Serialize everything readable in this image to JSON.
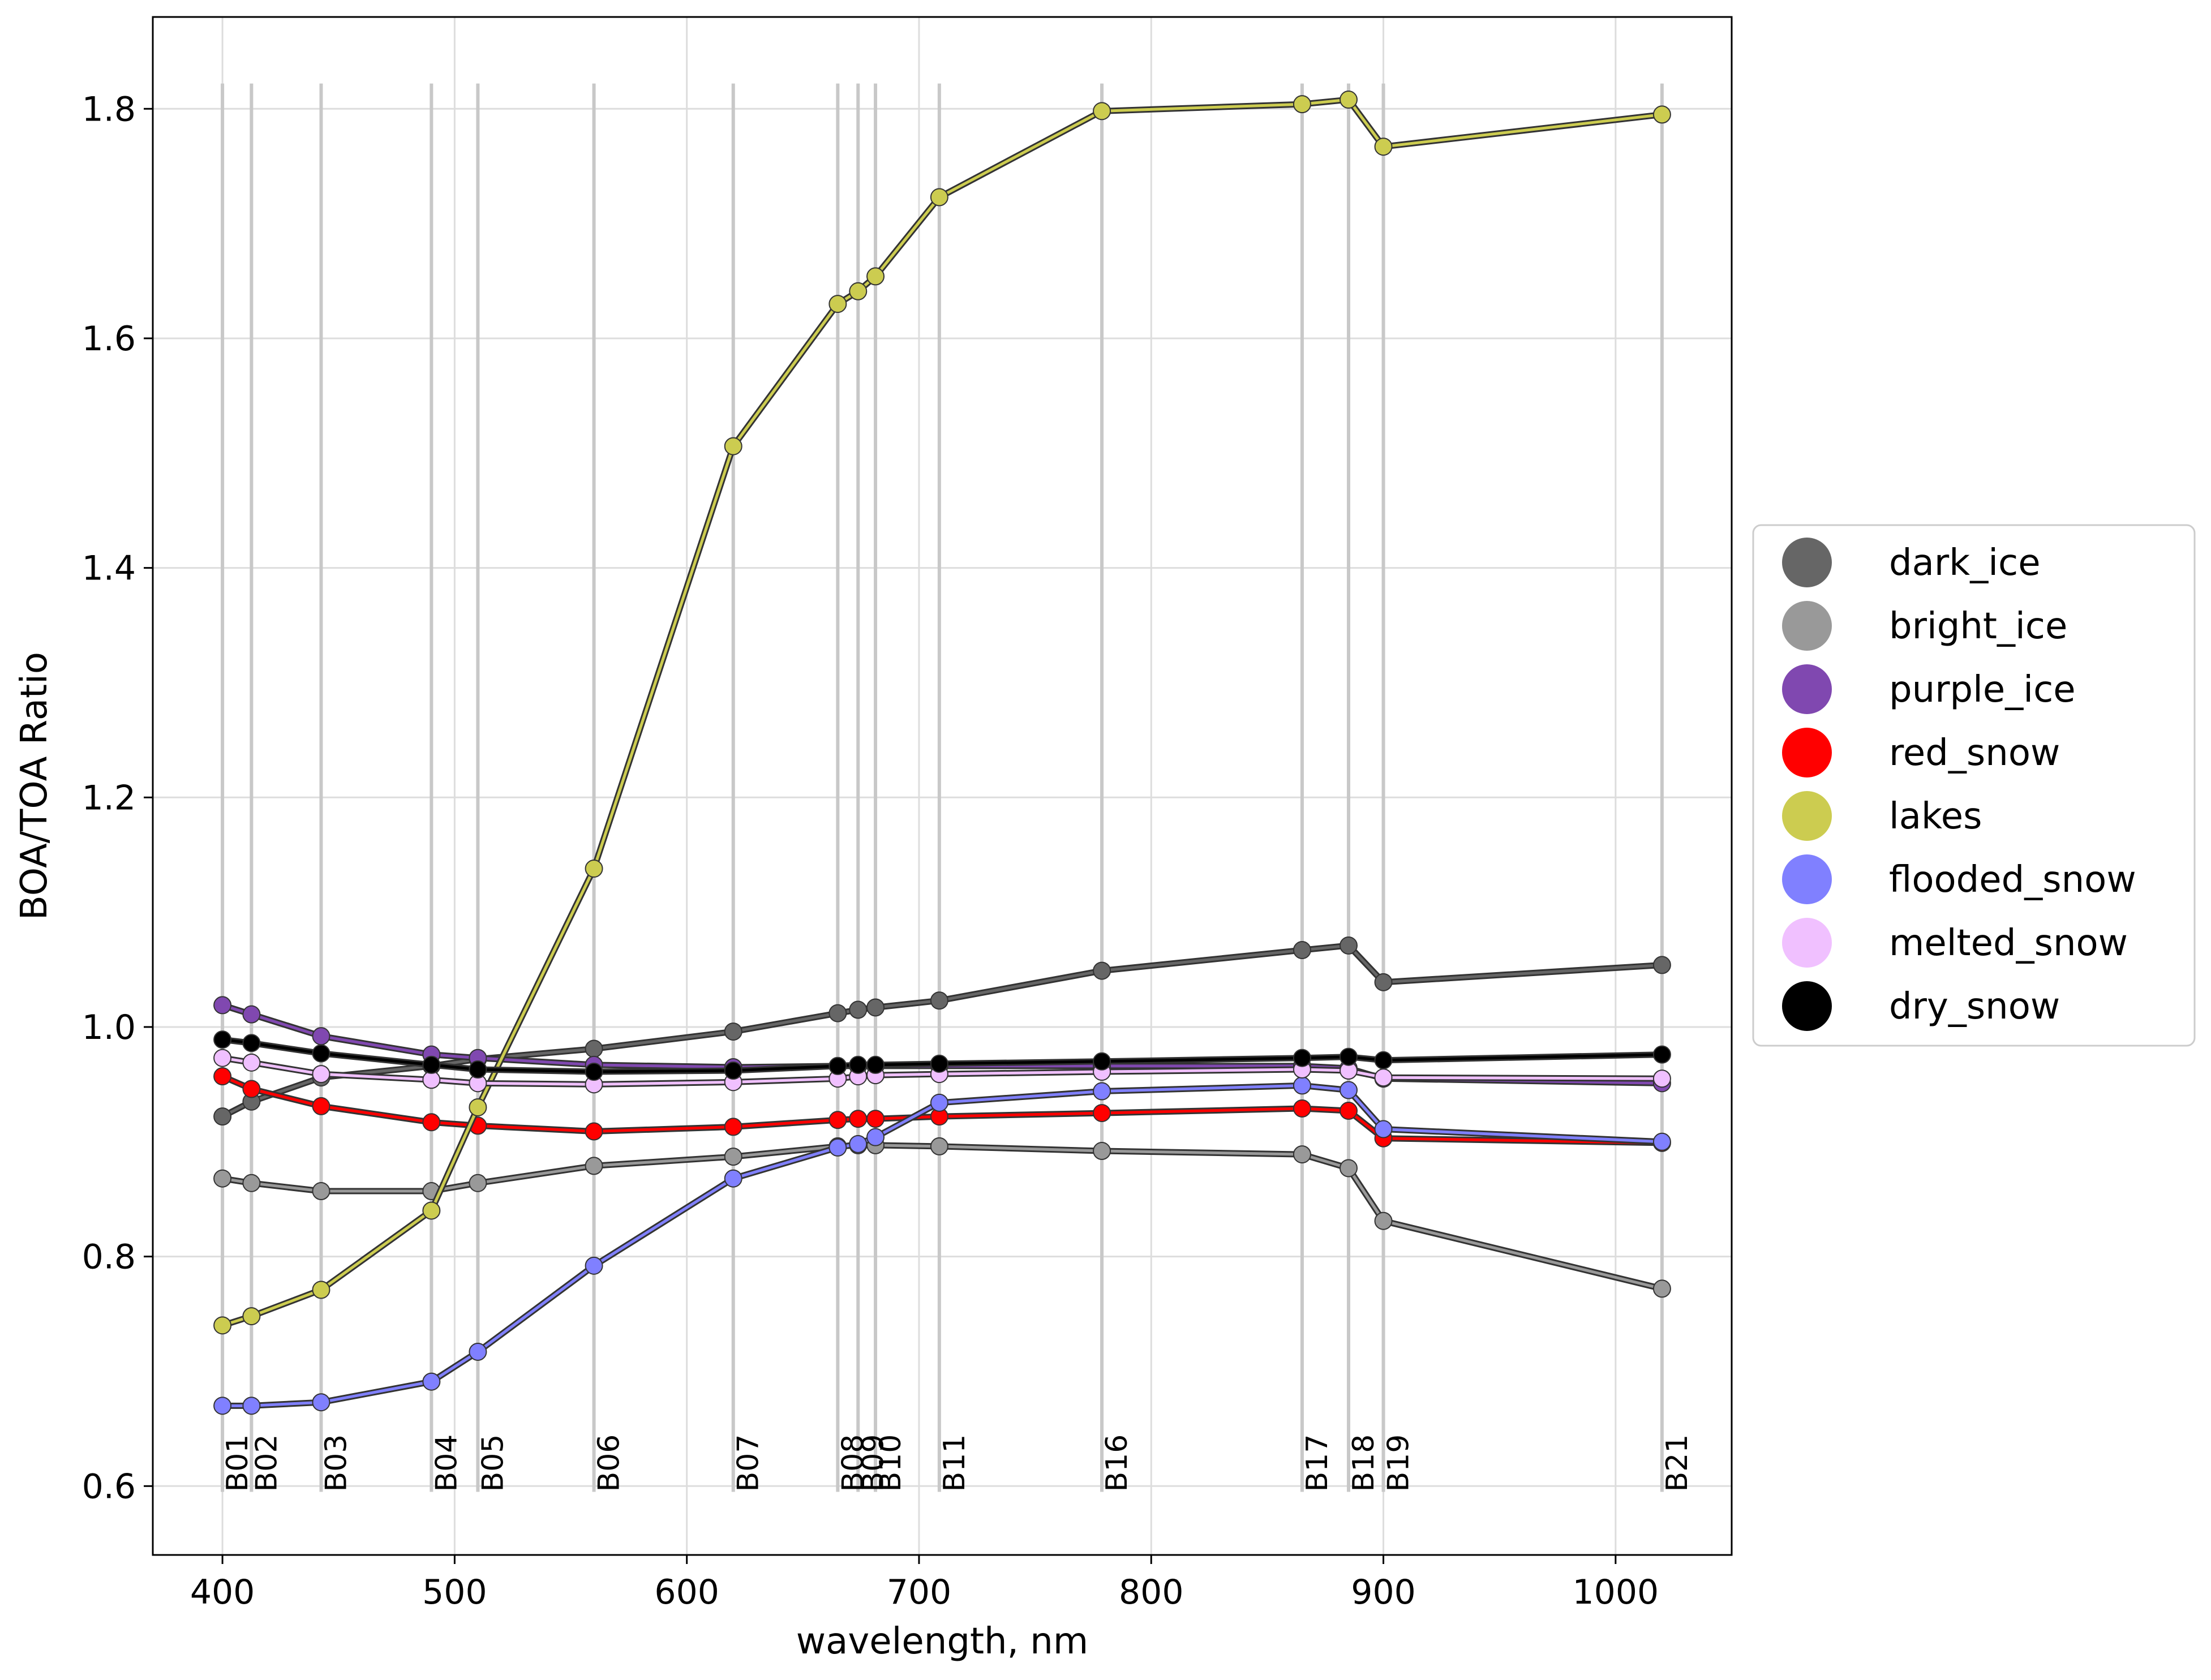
{
  "chart_data": {
    "type": "line",
    "xlabel": "wavelength, nm",
    "ylabel": "BOA/TOA Ratio",
    "xlim": [
      370,
      1050
    ],
    "ylim": [
      0.54,
      1.88
    ],
    "x_ticks": [
      400,
      500,
      600,
      700,
      800,
      900,
      1000
    ],
    "y_ticks": [
      0.6,
      0.8,
      1.0,
      1.2,
      1.4,
      1.6,
      1.8
    ],
    "x_tick_labels": [
      "400",
      "500",
      "600",
      "700",
      "800",
      "900",
      "1000"
    ],
    "y_tick_labels": [
      "0.6",
      "0.8",
      "1.0",
      "1.2",
      "1.4",
      "1.6",
      "1.8"
    ],
    "grid": true,
    "legend_position": "right, outside plot",
    "bands": [
      "B01",
      "B02",
      "B03",
      "B04",
      "B05",
      "B06",
      "B07",
      "B08",
      "B09",
      "B10",
      "B11",
      "B16",
      "B17",
      "B18",
      "B19",
      "B21"
    ],
    "x": [
      400,
      412.5,
      442.5,
      490,
      510,
      560,
      620,
      665,
      673.75,
      681.25,
      708.75,
      778.75,
      865,
      885,
      900,
      1020
    ],
    "series": [
      {
        "name": "dark_ice",
        "color": "#666666",
        "values": [
          0.922,
          0.935,
          0.956,
          0.966,
          0.972,
          0.981,
          0.996,
          1.012,
          1.015,
          1.017,
          1.023,
          1.049,
          1.067,
          1.071,
          1.039,
          1.054
        ]
      },
      {
        "name": "bright_ice",
        "color": "#999999",
        "values": [
          0.868,
          0.864,
          0.857,
          0.857,
          0.864,
          0.879,
          0.887,
          0.896,
          0.897,
          0.897,
          0.896,
          0.892,
          0.889,
          0.877,
          0.831,
          0.772
        ]
      },
      {
        "name": "purple_ice",
        "color": "#8048b0",
        "values": [
          1.019,
          1.011,
          0.992,
          0.976,
          0.973,
          0.967,
          0.965,
          0.966,
          0.966,
          0.966,
          0.966,
          0.966,
          0.966,
          0.964,
          0.955,
          0.951
        ]
      },
      {
        "name": "red_snow",
        "color": "#ff0000",
        "values": [
          0.957,
          0.946,
          0.931,
          0.917,
          0.914,
          0.909,
          0.913,
          0.919,
          0.92,
          0.92,
          0.922,
          0.925,
          0.929,
          0.927,
          0.903,
          0.899
        ]
      },
      {
        "name": "lakes",
        "color": "#cccc50",
        "values": [
          0.74,
          0.748,
          0.771,
          0.84,
          0.93,
          1.138,
          1.506,
          1.63,
          1.641,
          1.654,
          1.723,
          1.798,
          1.804,
          1.808,
          1.767,
          1.795
        ]
      },
      {
        "name": "flooded_snow",
        "color": "#8080ff",
        "values": [
          0.67,
          0.67,
          0.673,
          0.691,
          0.717,
          0.792,
          0.868,
          0.895,
          0.898,
          0.904,
          0.934,
          0.944,
          0.949,
          0.945,
          0.911,
          0.9
        ]
      },
      {
        "name": "melted_snow",
        "color": "#f0c0ff",
        "values": [
          0.973,
          0.969,
          0.959,
          0.954,
          0.951,
          0.95,
          0.952,
          0.955,
          0.957,
          0.958,
          0.959,
          0.961,
          0.963,
          0.962,
          0.956,
          0.955
        ]
      },
      {
        "name": "dry_snow",
        "color": "#000000",
        "values": [
          0.989,
          0.986,
          0.977,
          0.967,
          0.963,
          0.961,
          0.962,
          0.966,
          0.967,
          0.967,
          0.968,
          0.97,
          0.973,
          0.974,
          0.971,
          0.976
        ]
      }
    ]
  }
}
